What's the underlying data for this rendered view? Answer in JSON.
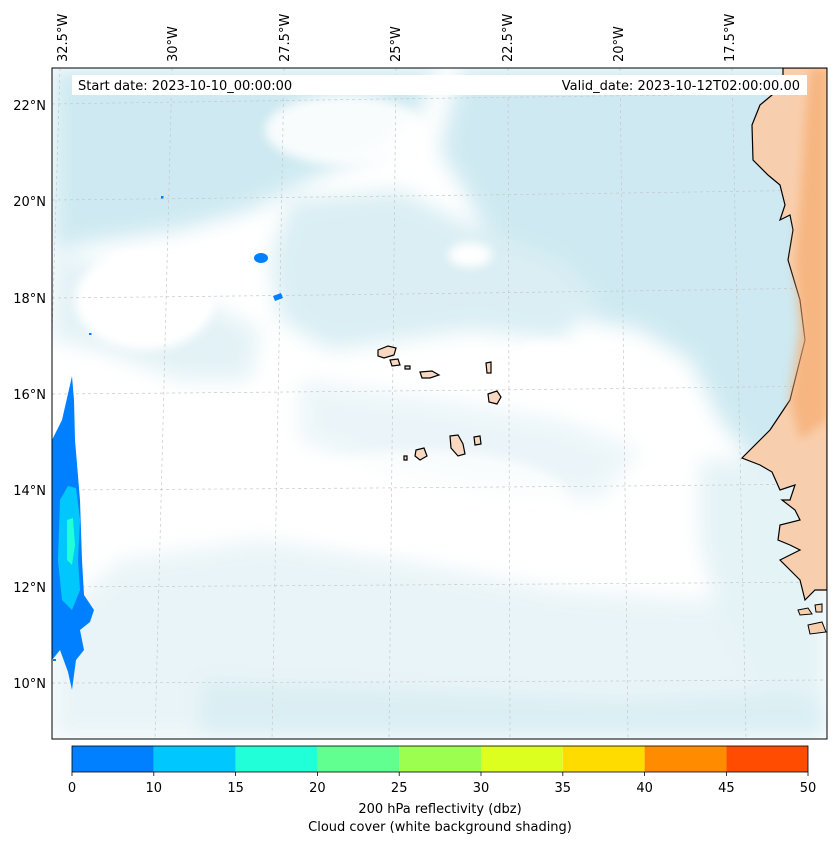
{
  "map": {
    "start_date": "Start date: 2023-10-10_00:00:00",
    "valid_date": "Valid_date: 2023-10-12T02:00:00.00",
    "lon_labels": [
      "32.5°W",
      "30°W",
      "27.5°W",
      "25°W",
      "22.5°W",
      "20°W",
      "17.5°W"
    ],
    "lat_labels": [
      "22°N",
      "20°N",
      "18°N",
      "16°N",
      "14°N",
      "12°N",
      "10°N"
    ],
    "colors": {
      "ocean": "#ffffff",
      "cloud": "#bfe3ec",
      "land": "#f8cfae",
      "land_warm": "#f6ad72",
      "coastline": "#000000",
      "grid": "#c8c8c8"
    },
    "reflectivity_cells": [
      "32.5°W 16–10°N rain band",
      "28.5°W 18.7°N",
      "28°W 18°N",
      "30.5°W 20°N",
      "32°W 17.2°N"
    ]
  },
  "colorbar": {
    "ticks": [
      "0",
      "10",
      "15",
      "20",
      "25",
      "30",
      "35",
      "40",
      "45",
      "50"
    ],
    "colors": [
      "#0080ff",
      "#00c8ff",
      "#20ffd8",
      "#60ff90",
      "#9cff50",
      "#dcff20",
      "#ffdc00",
      "#ff8c00",
      "#ff4c00"
    ],
    "label_line1": "200 hPa reflectivity (dbz)",
    "label_line2": "Cloud cover (white background shading)"
  }
}
